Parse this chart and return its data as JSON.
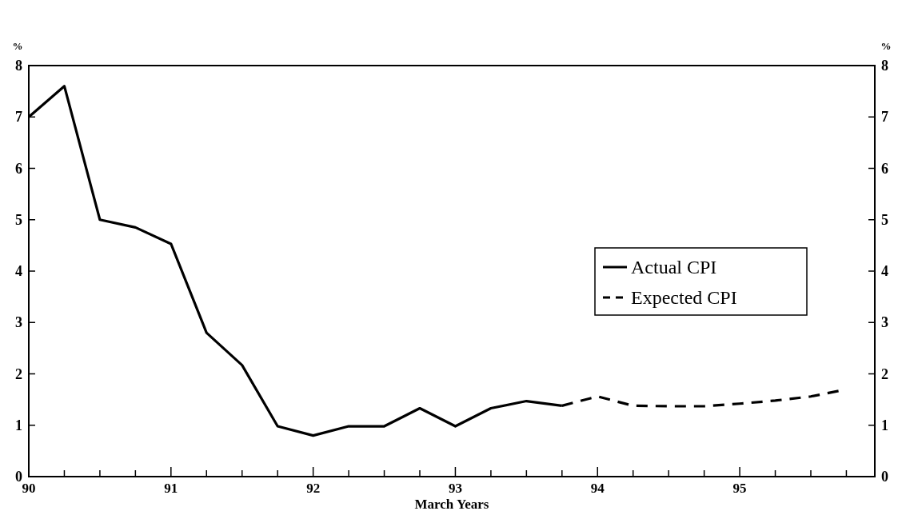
{
  "chart_data": {
    "type": "line",
    "xlabel": "March Years",
    "ylabel": "%",
    "y2label": "%",
    "xlim": [
      90,
      95.95
    ],
    "xticks": [
      90,
      {
        "value": 90.25,
        "label": null
      },
      {
        "value": 90.5,
        "label": null
      },
      {
        "value": 90.75,
        "label": null
      },
      91,
      {
        "value": 91.25,
        "label": null
      },
      {
        "value": 91.5,
        "label": null
      },
      {
        "value": 91.75,
        "label": null
      },
      92,
      {
        "value": 92.25,
        "label": null
      },
      {
        "value": 92.5,
        "label": null
      },
      {
        "value": 92.75,
        "label": null
      },
      93,
      {
        "value": 93.25,
        "label": null
      },
      {
        "value": 93.5,
        "label": null
      },
      {
        "value": 93.75,
        "label": null
      },
      94,
      {
        "value": 94.25,
        "label": null
      },
      {
        "value": 94.5,
        "label": null
      },
      {
        "value": 94.75,
        "label": null
      },
      95,
      {
        "value": 95.25,
        "label": null
      },
      {
        "value": 95.5,
        "label": null
      },
      {
        "value": 95.75,
        "label": null
      }
    ],
    "ylim": [
      0,
      8
    ],
    "yticks": [
      0,
      1,
      2,
      3,
      4,
      5,
      6,
      7,
      8
    ],
    "y2lim": [
      0,
      8
    ],
    "y2ticks": [
      0,
      1,
      2,
      3,
      4,
      5,
      6,
      7,
      8
    ],
    "grid": false,
    "legend": "right",
    "marker": "none",
    "series": [
      {
        "name": "Actual CPI",
        "color": "#000000",
        "line_style": "solid",
        "x": [
          90,
          90.25,
          90.5,
          90.75,
          91,
          91.25,
          91.5,
          91.75,
          92,
          92.25,
          92.5,
          92.75,
          93,
          93.25,
          93.5,
          93.75
        ],
        "values": [
          7.0,
          7.6,
          5.0,
          4.85,
          4.53,
          2.8,
          2.17,
          0.98,
          0.8,
          0.98,
          0.98,
          1.33,
          0.98,
          1.33,
          1.47,
          1.38
        ]
      },
      {
        "name": "Expected CPI",
        "color": "#000000",
        "line_style": "dashed",
        "x": [
          93.75,
          94,
          94.25,
          94.5,
          94.75,
          95,
          95.25,
          95.5,
          95.7
        ],
        "values": [
          1.38,
          1.56,
          1.38,
          1.37,
          1.37,
          1.42,
          1.48,
          1.56,
          1.67
        ]
      }
    ]
  }
}
